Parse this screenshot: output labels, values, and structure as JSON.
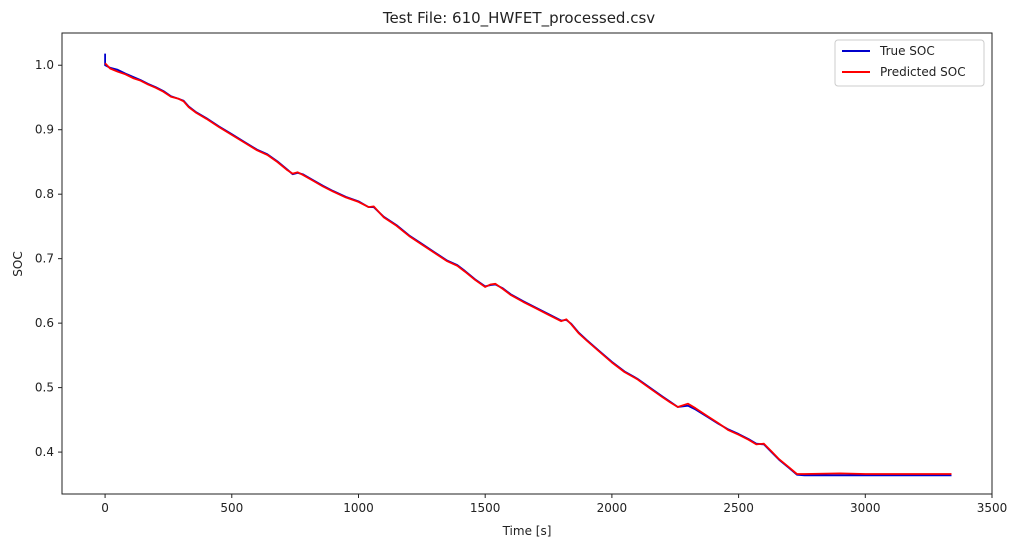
{
  "chart_data": {
    "type": "line",
    "title": "Test File: 610_HWFET_processed.csv",
    "xlabel": "Time [s]",
    "ylabel": "SOC",
    "xlim": [
      -170,
      3500
    ],
    "ylim": [
      0.335,
      1.05
    ],
    "xticks": [
      0,
      500,
      1000,
      1500,
      2000,
      2500,
      3000,
      3500
    ],
    "yticks": [
      0.4,
      0.5,
      0.6,
      0.7,
      0.8,
      0.9,
      1.0
    ],
    "grid": false,
    "legend_position": "top-right",
    "series": [
      {
        "name": "True SOC",
        "color": "#0000cc",
        "points": [
          [
            0,
            1.018
          ],
          [
            0,
            1.0
          ],
          [
            20,
            0.996
          ],
          [
            50,
            0.993
          ],
          [
            80,
            0.987
          ],
          [
            110,
            0.982
          ],
          [
            140,
            0.977
          ],
          [
            170,
            0.971
          ],
          [
            200,
            0.966
          ],
          [
            230,
            0.96
          ],
          [
            260,
            0.952
          ],
          [
            290,
            0.948
          ],
          [
            310,
            0.945
          ],
          [
            330,
            0.936
          ],
          [
            360,
            0.927
          ],
          [
            400,
            0.918
          ],
          [
            450,
            0.905
          ],
          [
            500,
            0.893
          ],
          [
            550,
            0.881
          ],
          [
            600,
            0.869
          ],
          [
            640,
            0.862
          ],
          [
            680,
            0.851
          ],
          [
            720,
            0.838
          ],
          [
            740,
            0.831
          ],
          [
            760,
            0.833
          ],
          [
            780,
            0.831
          ],
          [
            820,
            0.822
          ],
          [
            860,
            0.813
          ],
          [
            900,
            0.805
          ],
          [
            950,
            0.796
          ],
          [
            1000,
            0.789
          ],
          [
            1040,
            0.78
          ],
          [
            1060,
            0.78
          ],
          [
            1100,
            0.765
          ],
          [
            1150,
            0.752
          ],
          [
            1200,
            0.736
          ],
          [
            1250,
            0.723
          ],
          [
            1300,
            0.71
          ],
          [
            1350,
            0.697
          ],
          [
            1390,
            0.69
          ],
          [
            1420,
            0.681
          ],
          [
            1460,
            0.668
          ],
          [
            1500,
            0.657
          ],
          [
            1520,
            0.659
          ],
          [
            1540,
            0.66
          ],
          [
            1570,
            0.654
          ],
          [
            1600,
            0.645
          ],
          [
            1650,
            0.634
          ],
          [
            1700,
            0.624
          ],
          [
            1750,
            0.614
          ],
          [
            1800,
            0.604
          ],
          [
            1820,
            0.605
          ],
          [
            1840,
            0.599
          ],
          [
            1870,
            0.585
          ],
          [
            1900,
            0.574
          ],
          [
            1950,
            0.557
          ],
          [
            2000,
            0.54
          ],
          [
            2050,
            0.525
          ],
          [
            2100,
            0.514
          ],
          [
            2150,
            0.5
          ],
          [
            2200,
            0.486
          ],
          [
            2230,
            0.478
          ],
          [
            2260,
            0.47
          ],
          [
            2300,
            0.472
          ],
          [
            2330,
            0.466
          ],
          [
            2380,
            0.454
          ],
          [
            2420,
            0.444
          ],
          [
            2460,
            0.435
          ],
          [
            2500,
            0.428
          ],
          [
            2540,
            0.42
          ],
          [
            2570,
            0.413
          ],
          [
            2600,
            0.412
          ],
          [
            2630,
            0.4
          ],
          [
            2660,
            0.388
          ],
          [
            2700,
            0.375
          ],
          [
            2730,
            0.365
          ],
          [
            2760,
            0.364
          ],
          [
            2900,
            0.364
          ],
          [
            3100,
            0.364
          ],
          [
            3340,
            0.364
          ]
        ]
      },
      {
        "name": "Predicted SOC",
        "color": "#ff0000",
        "points": [
          [
            0,
            1.003
          ],
          [
            20,
            0.995
          ],
          [
            50,
            0.99
          ],
          [
            80,
            0.986
          ],
          [
            110,
            0.98
          ],
          [
            140,
            0.976
          ],
          [
            170,
            0.97
          ],
          [
            200,
            0.965
          ],
          [
            230,
            0.959
          ],
          [
            260,
            0.951
          ],
          [
            290,
            0.948
          ],
          [
            310,
            0.944
          ],
          [
            330,
            0.935
          ],
          [
            360,
            0.926
          ],
          [
            400,
            0.917
          ],
          [
            450,
            0.904
          ],
          [
            500,
            0.892
          ],
          [
            550,
            0.88
          ],
          [
            600,
            0.868
          ],
          [
            640,
            0.861
          ],
          [
            680,
            0.85
          ],
          [
            720,
            0.837
          ],
          [
            740,
            0.832
          ],
          [
            760,
            0.834
          ],
          [
            780,
            0.83
          ],
          [
            820,
            0.821
          ],
          [
            860,
            0.812
          ],
          [
            900,
            0.804
          ],
          [
            950,
            0.795
          ],
          [
            1000,
            0.788
          ],
          [
            1040,
            0.78
          ],
          [
            1060,
            0.781
          ],
          [
            1100,
            0.764
          ],
          [
            1150,
            0.751
          ],
          [
            1200,
            0.735
          ],
          [
            1250,
            0.722
          ],
          [
            1300,
            0.709
          ],
          [
            1350,
            0.696
          ],
          [
            1390,
            0.689
          ],
          [
            1420,
            0.68
          ],
          [
            1460,
            0.667
          ],
          [
            1500,
            0.656
          ],
          [
            1520,
            0.66
          ],
          [
            1540,
            0.661
          ],
          [
            1570,
            0.653
          ],
          [
            1600,
            0.644
          ],
          [
            1650,
            0.633
          ],
          [
            1700,
            0.623
          ],
          [
            1750,
            0.613
          ],
          [
            1800,
            0.603
          ],
          [
            1820,
            0.606
          ],
          [
            1840,
            0.598
          ],
          [
            1870,
            0.584
          ],
          [
            1900,
            0.573
          ],
          [
            1950,
            0.556
          ],
          [
            2000,
            0.539
          ],
          [
            2050,
            0.524
          ],
          [
            2100,
            0.513
          ],
          [
            2150,
            0.499
          ],
          [
            2200,
            0.485
          ],
          [
            2230,
            0.477
          ],
          [
            2260,
            0.47
          ],
          [
            2300,
            0.475
          ],
          [
            2330,
            0.468
          ],
          [
            2380,
            0.455
          ],
          [
            2420,
            0.445
          ],
          [
            2460,
            0.434
          ],
          [
            2500,
            0.427
          ],
          [
            2540,
            0.419
          ],
          [
            2570,
            0.412
          ],
          [
            2600,
            0.413
          ],
          [
            2630,
            0.401
          ],
          [
            2660,
            0.389
          ],
          [
            2700,
            0.376
          ],
          [
            2730,
            0.366
          ],
          [
            2760,
            0.366
          ],
          [
            2900,
            0.367
          ],
          [
            3000,
            0.366
          ],
          [
            3340,
            0.366
          ]
        ]
      }
    ]
  }
}
